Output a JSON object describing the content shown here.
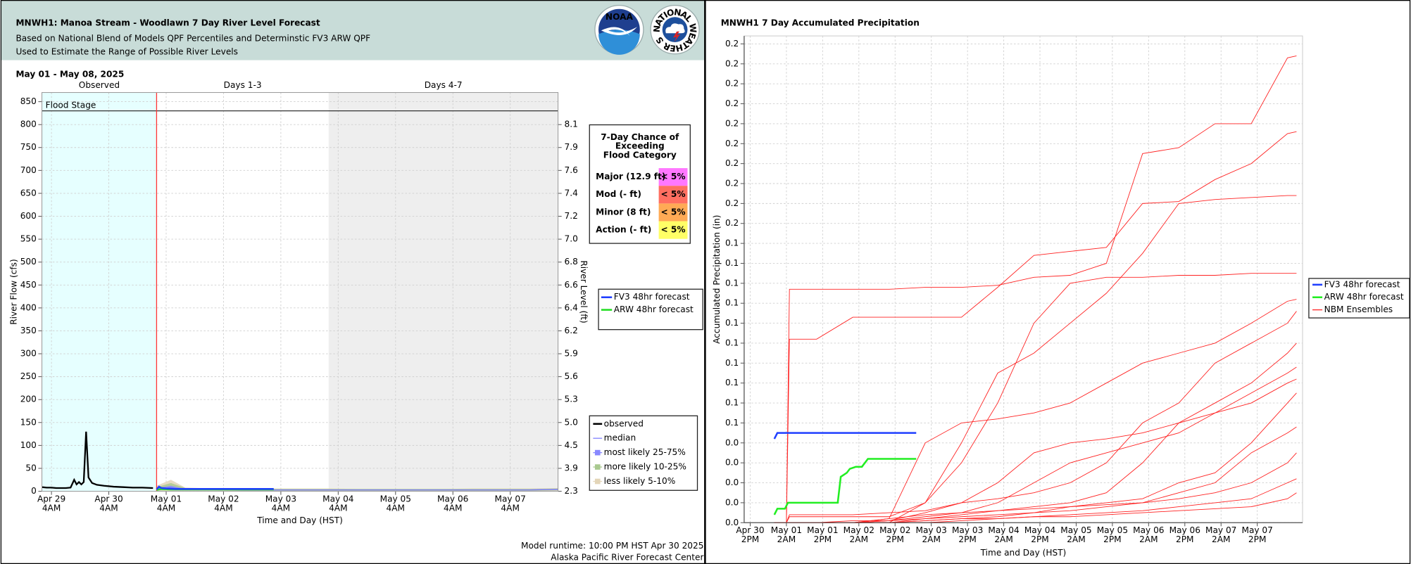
{
  "header": {
    "title": "MNWH1: Manoa Stream - Woodlawn 7 Day River Level Forecast",
    "subtitle": [
      "Based on National Blend of Models QPF Percentiles and Determinstic FV3 ARW QPF",
      "Used to Estimate the Range of Possible River Levels"
    ],
    "logos": [
      "NOAA",
      "NATIONAL WEATHER SERVICE"
    ]
  },
  "footer": [
    "Model runtime: 10:00 PM HST Apr 30 2025",
    "Alaska Pacific River Forecast Center"
  ],
  "chart_data": [
    {
      "type": "line",
      "title": "May 01 - May 08, 2025",
      "x_label": "Time and Day (HST)",
      "y_label": "River Flow (cfs)",
      "y2_label": "River Level (ft)",
      "grid": true,
      "xlim": [
        0,
        216
      ],
      "xticks": [
        {
          "value": 4,
          "label": [
            "Apr 29",
            "4AM"
          ]
        },
        {
          "value": 28,
          "label": [
            "Apr 30",
            "4AM"
          ]
        },
        {
          "value": 52,
          "label": [
            "May 01",
            "4AM"
          ]
        },
        {
          "value": 76,
          "label": [
            "May 02",
            "4AM"
          ]
        },
        {
          "value": 100,
          "label": [
            "May 03",
            "4AM"
          ]
        },
        {
          "value": 124,
          "label": [
            "May 04",
            "4AM"
          ]
        },
        {
          "value": 148,
          "label": [
            "May 05",
            "4AM"
          ]
        },
        {
          "value": 172,
          "label": [
            "May 06",
            "4AM"
          ]
        },
        {
          "value": 196,
          "label": [
            "May 07",
            "4AM"
          ]
        }
      ],
      "ylim": [
        0,
        870
      ],
      "yticks": [
        0,
        50,
        100,
        150,
        200,
        250,
        300,
        350,
        400,
        450,
        500,
        550,
        600,
        650,
        700,
        750,
        800,
        850
      ],
      "y2ticks": [
        2.3,
        3.9,
        4.5,
        {
          "value": 5,
          "label": "5.0"
        },
        5.3,
        5.6,
        5.9,
        6.2,
        6.4,
        6.6,
        6.8,
        {
          "value": 7,
          "label": "7.0"
        },
        7.2,
        7.4,
        7.6,
        7.9,
        8.1
      ],
      "y2_at_yticks": true,
      "regions": [
        {
          "label": "Observed",
          "start": 0,
          "end": 48,
          "color": "#e6ffff"
        },
        {
          "label": "Days 1-3",
          "start": 48,
          "end": 120,
          "color": "#ffffff"
        },
        {
          "label": "Days 4-7",
          "start": 120,
          "end": 216,
          "color": "#eeeeee"
        }
      ],
      "now_line": {
        "x": 48,
        "color": "#ff3333"
      },
      "flood_stage": {
        "label": "Flood Stage",
        "value": 830,
        "color": "#333333"
      },
      "series": [
        {
          "name": "observed",
          "color": "#000000",
          "x": [
            0,
            2,
            4,
            6,
            8,
            10,
            12,
            13.5,
            14.5,
            15.5,
            16.5,
            17.5,
            18.5,
            19.5,
            21,
            23,
            26,
            30,
            34,
            38,
            42,
            46.5
          ],
          "values": [
            9,
            8,
            8,
            7,
            7,
            7,
            8,
            25,
            15,
            20,
            15,
            20,
            130,
            30,
            18,
            14,
            12,
            10,
            9,
            8,
            8,
            7
          ]
        },
        {
          "name": "median",
          "color": "#7f7fff",
          "x": [
            48,
            54,
            60,
            72,
            84,
            96,
            108,
            120,
            132,
            144,
            156,
            168,
            180,
            192,
            204,
            216
          ],
          "values": [
            5,
            8,
            4,
            4,
            3,
            3,
            3,
            3,
            3,
            3,
            3,
            3,
            3,
            3,
            3,
            4
          ]
        }
      ],
      "bands": [
        {
          "name": "most likely 25-75%",
          "color": "#8888ff",
          "x": [
            48,
            54,
            60,
            72,
            84,
            96,
            108,
            120,
            132,
            144,
            156,
            168,
            180,
            192,
            204,
            216
          ],
          "lower": [
            3,
            4,
            3,
            3,
            2,
            2,
            2,
            2,
            2,
            2,
            2,
            2,
            2,
            2,
            2,
            3
          ],
          "upper": [
            7,
            12,
            5,
            4,
            4,
            4,
            4,
            4,
            4,
            4,
            4,
            4,
            4,
            4,
            4,
            5
          ]
        },
        {
          "name": "more likely 10-25%",
          "color": "#a9c98f",
          "x": [
            48,
            54,
            60,
            72,
            84,
            96,
            108,
            120,
            132,
            144,
            156,
            168,
            180,
            192,
            204,
            216
          ],
          "lower": [
            2,
            2,
            2,
            2,
            1,
            1,
            1,
            1,
            1,
            1,
            1,
            1,
            1,
            1,
            1,
            2
          ],
          "upper": [
            9,
            18,
            7,
            5,
            5,
            5,
            5,
            5,
            5,
            5,
            5,
            5,
            5,
            5,
            5,
            6
          ]
        },
        {
          "name": "less likely 5-10%",
          "color": "#e3d5b8",
          "x": [
            48,
            54,
            60,
            72,
            84,
            96,
            108,
            120,
            132,
            144,
            156,
            168,
            180,
            192,
            204,
            216
          ],
          "lower": [
            1,
            1,
            1,
            1,
            0,
            0,
            0,
            0,
            0,
            0,
            0,
            0,
            0,
            0,
            0,
            1
          ],
          "upper": [
            12,
            25,
            8,
            6,
            6,
            6,
            6,
            6,
            5,
            5,
            5,
            5,
            6,
            6,
            6,
            7
          ]
        }
      ],
      "forecasts": [
        {
          "name": "FV3 48hr forecast",
          "color": "#1f3fff",
          "x": [
            48,
            49,
            50,
            52,
            56,
            60,
            66,
            72,
            78,
            84,
            90,
            97
          ],
          "values": [
            4,
            10,
            7,
            6,
            5,
            5,
            5,
            5,
            5,
            5,
            5,
            5
          ]
        },
        {
          "name": "ARW 48hr forecast",
          "color": "#22dd22",
          "x": [
            48,
            50,
            54,
            60,
            72,
            84,
            97
          ],
          "values": [
            3,
            5,
            4,
            4,
            4,
            4,
            4
          ]
        }
      ],
      "flood_table": {
        "title": [
          "7-Day Chance of",
          "Exceeding",
          "Flood Category"
        ],
        "rows": [
          {
            "category": "Major (12.9 ft)",
            "chance": "< 5%",
            "color": "#ff77ff"
          },
          {
            "category": "Mod (- ft)",
            "chance": "< 5%",
            "color": "#ff6f61"
          },
          {
            "category": "Minor (8 ft)",
            "chance": "< 5%",
            "color": "#ffaa55"
          },
          {
            "category": "Action (- ft)",
            "chance": "< 5%",
            "color": "#ffff66"
          }
        ]
      }
    },
    {
      "type": "line",
      "title": "MNWH1 7 Day Accumulated Precipitation",
      "x_label": "Time and Day (HST)",
      "y_label": "Accumulated Precipitation (in)",
      "grid": true,
      "xlim": [
        36,
        221
      ],
      "xticks": [
        {
          "value": 38,
          "label": [
            "Apr 30",
            "2PM"
          ]
        },
        {
          "value": 50,
          "label": [
            "May 01",
            "2AM"
          ]
        },
        {
          "value": 62,
          "label": [
            "May 01",
            "2PM"
          ]
        },
        {
          "value": 74,
          "label": [
            "May 02",
            "2AM"
          ]
        },
        {
          "value": 86,
          "label": [
            "May 02",
            "2PM"
          ]
        },
        {
          "value": 98,
          "label": [
            "May 03",
            "2AM"
          ]
        },
        {
          "value": 110,
          "label": [
            "May 03",
            "2PM"
          ]
        },
        {
          "value": 122,
          "label": [
            "May 04",
            "2AM"
          ]
        },
        {
          "value": 134,
          "label": [
            "May 04",
            "2PM"
          ]
        },
        {
          "value": 146,
          "label": [
            "May 05",
            "2AM"
          ]
        },
        {
          "value": 158,
          "label": [
            "May 05",
            "2PM"
          ]
        },
        {
          "value": 170,
          "label": [
            "May 06",
            "2AM"
          ]
        },
        {
          "value": 182,
          "label": [
            "May 06",
            "2PM"
          ]
        },
        {
          "value": 194,
          "label": [
            "May 07",
            "2AM"
          ]
        },
        {
          "value": 206,
          "label": [
            "May 07",
            "2PM"
          ]
        }
      ],
      "ylim": [
        0,
        0.244
      ],
      "yticks": [
        {
          "value": 0,
          "label": "0.0"
        },
        {
          "value": 0.01,
          "label": "0.0"
        },
        {
          "value": 0.02,
          "label": "0.0"
        },
        {
          "value": 0.03,
          "label": "0.0"
        },
        {
          "value": 0.04,
          "label": "0.0"
        },
        {
          "value": 0.05,
          "label": "0.1"
        },
        {
          "value": 0.06,
          "label": "0.1"
        },
        {
          "value": 0.07,
          "label": "0.1"
        },
        {
          "value": 0.08,
          "label": "0.1"
        },
        {
          "value": 0.09,
          "label": "0.1"
        },
        {
          "value": 0.1,
          "label": "0.1"
        },
        {
          "value": 0.11,
          "label": "0.1"
        },
        {
          "value": 0.12,
          "label": "0.1"
        },
        {
          "value": 0.13,
          "label": "0.1"
        },
        {
          "value": 0.14,
          "label": "0.1"
        },
        {
          "value": 0.15,
          "label": "0.2"
        },
        {
          "value": 0.16,
          "label": "0.2"
        },
        {
          "value": 0.17,
          "label": "0.2"
        },
        {
          "value": 0.18,
          "label": "0.2"
        },
        {
          "value": 0.19,
          "label": "0.2"
        },
        {
          "value": 0.2,
          "label": "0.2"
        },
        {
          "value": 0.21,
          "label": "0.2"
        },
        {
          "value": 0.22,
          "label": "0.2"
        },
        {
          "value": 0.23,
          "label": "0.2"
        },
        {
          "value": 0.24,
          "label": "0.2"
        }
      ],
      "series": [
        {
          "name": "FV3 48hr forecast",
          "color": "#1f3fff",
          "x": [
            46,
            47,
            93
          ],
          "values": [
            0.042,
            0.045,
            0.045
          ]
        },
        {
          "name": "ARW 48hr forecast",
          "color": "#22ee22",
          "x": [
            46,
            47,
            49.5,
            50.5,
            67,
            68,
            70,
            71,
            73,
            75,
            77,
            93
          ],
          "values": [
            0.004,
            0.007,
            0.007,
            0.01,
            0.01,
            0.023,
            0.025,
            0.027,
            0.028,
            0.028,
            0.032,
            0.032
          ]
        }
      ],
      "ensembles": {
        "name": "NBM Ensembles",
        "color": "#ff2222",
        "x": [
          46,
          50,
          51,
          60,
          72,
          84,
          96,
          108,
          120,
          132,
          144,
          156,
          168,
          180,
          192,
          204,
          216,
          219
        ],
        "members": [
          [
            0,
            0,
            0.117,
            0.117,
            0.117,
            0.117,
            0.118,
            0.118,
            0.119,
            0.123,
            0.124,
            0.13,
            0.185,
            0.188,
            0.2,
            0.2,
            0.233,
            0.234
          ],
          [
            0,
            0,
            0.092,
            0.092,
            0.103,
            0.103,
            0.103,
            0.103,
            0.118,
            0.134,
            0.136,
            0.138,
            0.16,
            0.161,
            0.172,
            0.18,
            0.195,
            0.196
          ],
          [
            0,
            0,
            0.003,
            0.003,
            0.003,
            0.003,
            0.01,
            0.04,
            0.075,
            0.085,
            0.1,
            0.115,
            0.135,
            0.16,
            0.162,
            0.163,
            0.164,
            0.164
          ],
          [
            0,
            0,
            0,
            0,
            0,
            0,
            0.01,
            0.03,
            0.06,
            0.1,
            0.12,
            0.123,
            0.123,
            0.124,
            0.124,
            0.125,
            0.125,
            0.125
          ],
          [
            0,
            0,
            0,
            0,
            0,
            0.002,
            0.04,
            0.05,
            0.052,
            0.055,
            0.06,
            0.07,
            0.08,
            0.085,
            0.09,
            0.1,
            0.111,
            0.112
          ],
          [
            0,
            0,
            0,
            0,
            0,
            0.001,
            0.005,
            0.01,
            0.012,
            0.015,
            0.02,
            0.03,
            0.05,
            0.06,
            0.08,
            0.09,
            0.1,
            0.106
          ],
          [
            0,
            0,
            0,
            0,
            0,
            0,
            0.002,
            0.004,
            0.006,
            0.008,
            0.01,
            0.015,
            0.03,
            0.05,
            0.06,
            0.07,
            0.085,
            0.09
          ],
          [
            0,
            0,
            0,
            0,
            0,
            0.001,
            0.003,
            0.005,
            0.01,
            0.02,
            0.03,
            0.035,
            0.04,
            0.045,
            0.055,
            0.065,
            0.075,
            0.078
          ],
          [
            0,
            0,
            0,
            0,
            0,
            0,
            0.001,
            0.002,
            0.003,
            0.005,
            0.008,
            0.01,
            0.012,
            0.02,
            0.025,
            0.04,
            0.06,
            0.065
          ],
          [
            0,
            0,
            0,
            0,
            0,
            0.002,
            0.004,
            0.005,
            0.006,
            0.007,
            0.008,
            0.009,
            0.01,
            0.015,
            0.02,
            0.035,
            0.045,
            0.048
          ],
          [
            0,
            0,
            0,
            0,
            0.001,
            0.001,
            0.002,
            0.003,
            0.004,
            0.005,
            0.006,
            0.008,
            0.01,
            0.012,
            0.015,
            0.02,
            0.03,
            0.035
          ],
          [
            0,
            0,
            0,
            0,
            0,
            0,
            0,
            0.001,
            0.002,
            0.003,
            0.004,
            0.005,
            0.006,
            0.008,
            0.01,
            0.012,
            0.02,
            0.022
          ],
          [
            0,
            0,
            0.004,
            0.004,
            0.004,
            0.005,
            0.006,
            0.01,
            0.02,
            0.035,
            0.04,
            0.042,
            0.045,
            0.05,
            0.055,
            0.06,
            0.07,
            0.072
          ],
          [
            0,
            0,
            0,
            0,
            0,
            0,
            0.001,
            0.002,
            0.002,
            0.003,
            0.003,
            0.004,
            0.005,
            0.006,
            0.007,
            0.008,
            0.012,
            0.015
          ]
        ]
      }
    }
  ]
}
